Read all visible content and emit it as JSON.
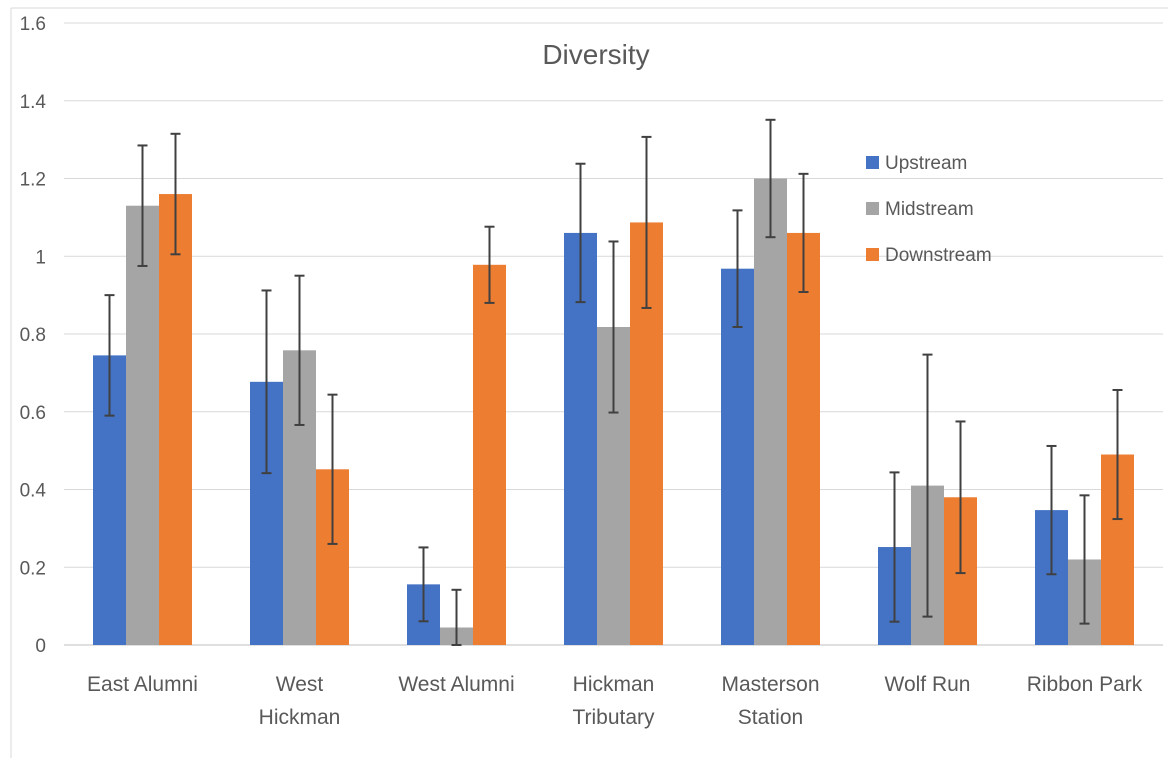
{
  "chart_data": {
    "type": "bar",
    "title": "Diversity",
    "xlabel": "",
    "ylabel": "",
    "ylim": [
      0,
      1.6
    ],
    "yticks": [
      "0",
      "0.2",
      "0.4",
      "0.6",
      "0.8",
      "1",
      "1.2",
      "1.4",
      "1.6"
    ],
    "grid": true,
    "legend_position": "top-right",
    "categories": [
      [
        "East Alumni"
      ],
      [
        "West",
        "Hickman"
      ],
      [
        "West Alumni"
      ],
      [
        "Hickman",
        "Tributary"
      ],
      [
        "Masterson",
        "Station"
      ],
      [
        "Wolf Run"
      ],
      [
        "Ribbon Park"
      ]
    ],
    "series": [
      {
        "name": "Upstream",
        "color": "#4472C4",
        "values": [
          0.745,
          0.677,
          0.156,
          1.06,
          0.968,
          0.252,
          0.347
        ],
        "error": [
          0.155,
          0.235,
          0.095,
          0.178,
          0.15,
          0.192,
          0.165
        ]
      },
      {
        "name": "Midstream",
        "color": "#A5A5A5",
        "values": [
          1.13,
          0.758,
          0.045,
          0.818,
          1.2,
          0.41,
          0.22
        ],
        "error": [
          0.155,
          0.192,
          0.097,
          0.22,
          0.151,
          0.337,
          0.165
        ]
      },
      {
        "name": "Downstream",
        "color": "#ED7D31",
        "values": [
          1.16,
          0.452,
          0.978,
          1.087,
          1.06,
          0.38,
          0.49
        ],
        "error": [
          0.155,
          0.192,
          0.098,
          0.22,
          0.152,
          0.195,
          0.166
        ]
      }
    ]
  }
}
